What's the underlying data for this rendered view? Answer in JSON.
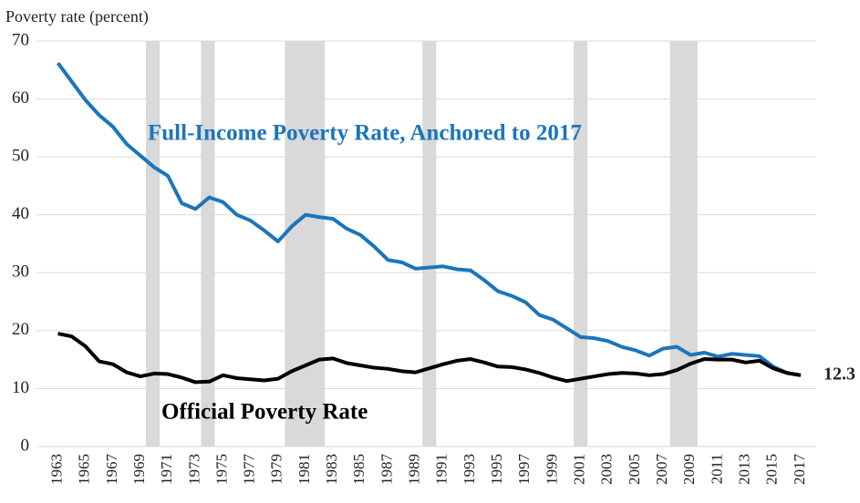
{
  "chart_data": {
    "type": "line",
    "y_axis_label": "Poverty rate (percent)",
    "x": [
      1963,
      1964,
      1965,
      1966,
      1967,
      1968,
      1969,
      1970,
      1971,
      1972,
      1973,
      1974,
      1975,
      1976,
      1977,
      1978,
      1979,
      1980,
      1981,
      1982,
      1983,
      1984,
      1985,
      1986,
      1987,
      1988,
      1989,
      1990,
      1991,
      1992,
      1993,
      1994,
      1995,
      1996,
      1997,
      1998,
      1999,
      2000,
      2001,
      2002,
      2003,
      2004,
      2005,
      2006,
      2007,
      2008,
      2009,
      2010,
      2011,
      2012,
      2013,
      2014,
      2015,
      2016,
      2017
    ],
    "series": [
      {
        "name": "Full-Income Poverty Rate, Anchored to 2017",
        "color": "#1b75bc",
        "values": [
          66.2,
          63,
          59.8,
          57.2,
          55.2,
          52.2,
          50.2,
          48.2,
          46.7,
          42,
          41,
          43,
          42.2,
          40,
          39,
          37.3,
          35.4,
          38,
          40,
          39.6,
          39.3,
          37.6,
          36.5,
          34.5,
          32.2,
          31.8,
          30.7,
          30.9,
          31.1,
          30.6,
          30.4,
          28.7,
          26.8,
          26,
          24.9,
          22.7,
          21.9,
          20.4,
          18.9,
          18.7,
          18.2,
          17.2,
          16.6,
          15.7,
          16.9,
          17.2,
          15.8,
          16.2,
          15.5,
          16,
          15.8,
          15.6,
          13.8,
          12.7,
          12.3
        ]
      },
      {
        "name": "Official Poverty Rate",
        "color": "#000000",
        "values": [
          19.5,
          19,
          17.3,
          14.7,
          14.2,
          12.8,
          12.1,
          12.6,
          12.5,
          11.9,
          11.1,
          11.2,
          12.3,
          11.8,
          11.6,
          11.4,
          11.7,
          13,
          14,
          15,
          15.2,
          14.4,
          14,
          13.6,
          13.4,
          13,
          12.8,
          13.5,
          14.2,
          14.8,
          15.1,
          14.5,
          13.8,
          13.7,
          13.3,
          12.7,
          11.9,
          11.3,
          11.7,
          12.1,
          12.5,
          12.7,
          12.6,
          12.3,
          12.5,
          13.2,
          14.3,
          15.1,
          15,
          15,
          14.5,
          14.8,
          13.5,
          12.7,
          12.3
        ]
      }
    ],
    "shaded_periods": [
      [
        1969.4,
        1970.4
      ],
      [
        1973.4,
        1974.4
      ],
      [
        1979.5,
        1982.4
      ],
      [
        1989.5,
        1990.5
      ],
      [
        2000.5,
        2001.5
      ],
      [
        2007.5,
        2009.5
      ]
    ],
    "shade_color": "#d9d9d9",
    "xlim": [
      1962.5,
      2017.8
    ],
    "xticks": [
      1963,
      1965,
      1967,
      1969,
      1971,
      1973,
      1975,
      1977,
      1979,
      1981,
      1983,
      1985,
      1987,
      1989,
      1991,
      1993,
      1995,
      1997,
      1999,
      2001,
      2003,
      2005,
      2007,
      2009,
      2011,
      2013,
      2015,
      2017
    ],
    "ylim": [
      0,
      70
    ],
    "yticks": [
      0,
      10,
      20,
      30,
      40,
      50,
      60,
      70
    ],
    "grid": true
  }
}
